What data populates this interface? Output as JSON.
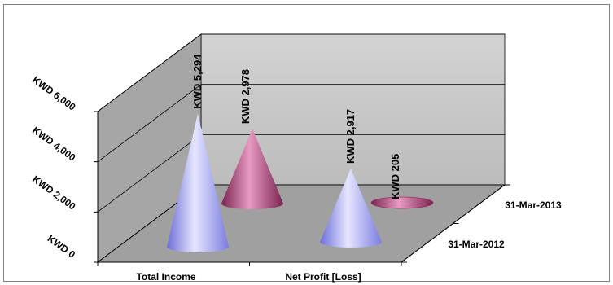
{
  "chart_data": {
    "type": "bar",
    "shape": "3d-cone",
    "categories": [
      "Total Income",
      "Net Profit [Loss]"
    ],
    "series": [
      {
        "name": "31-Mar-2012",
        "values": [
          5294,
          2917
        ],
        "labels": [
          "KWD 5,294",
          "KWD 2,917"
        ],
        "color": "#9999ff"
      },
      {
        "name": "31-Mar-2013",
        "values": [
          2978,
          205
        ],
        "labels": [
          "KWD 2,978",
          "KWD 205"
        ],
        "color": "#993366"
      }
    ],
    "y_ticks": [
      "KWD 0",
      "KWD 2,000",
      "KWD 4,000",
      "KWD 6,000"
    ],
    "ylim": [
      0,
      6000
    ],
    "grid": true,
    "title": "",
    "xlabel": "",
    "ylabel": ""
  },
  "colors": {
    "back_wall": "#c0c0c0",
    "side_wall": "#a6a6a6",
    "floor": "#a0a0a0",
    "gridline": "#000000",
    "border": "#808080"
  }
}
